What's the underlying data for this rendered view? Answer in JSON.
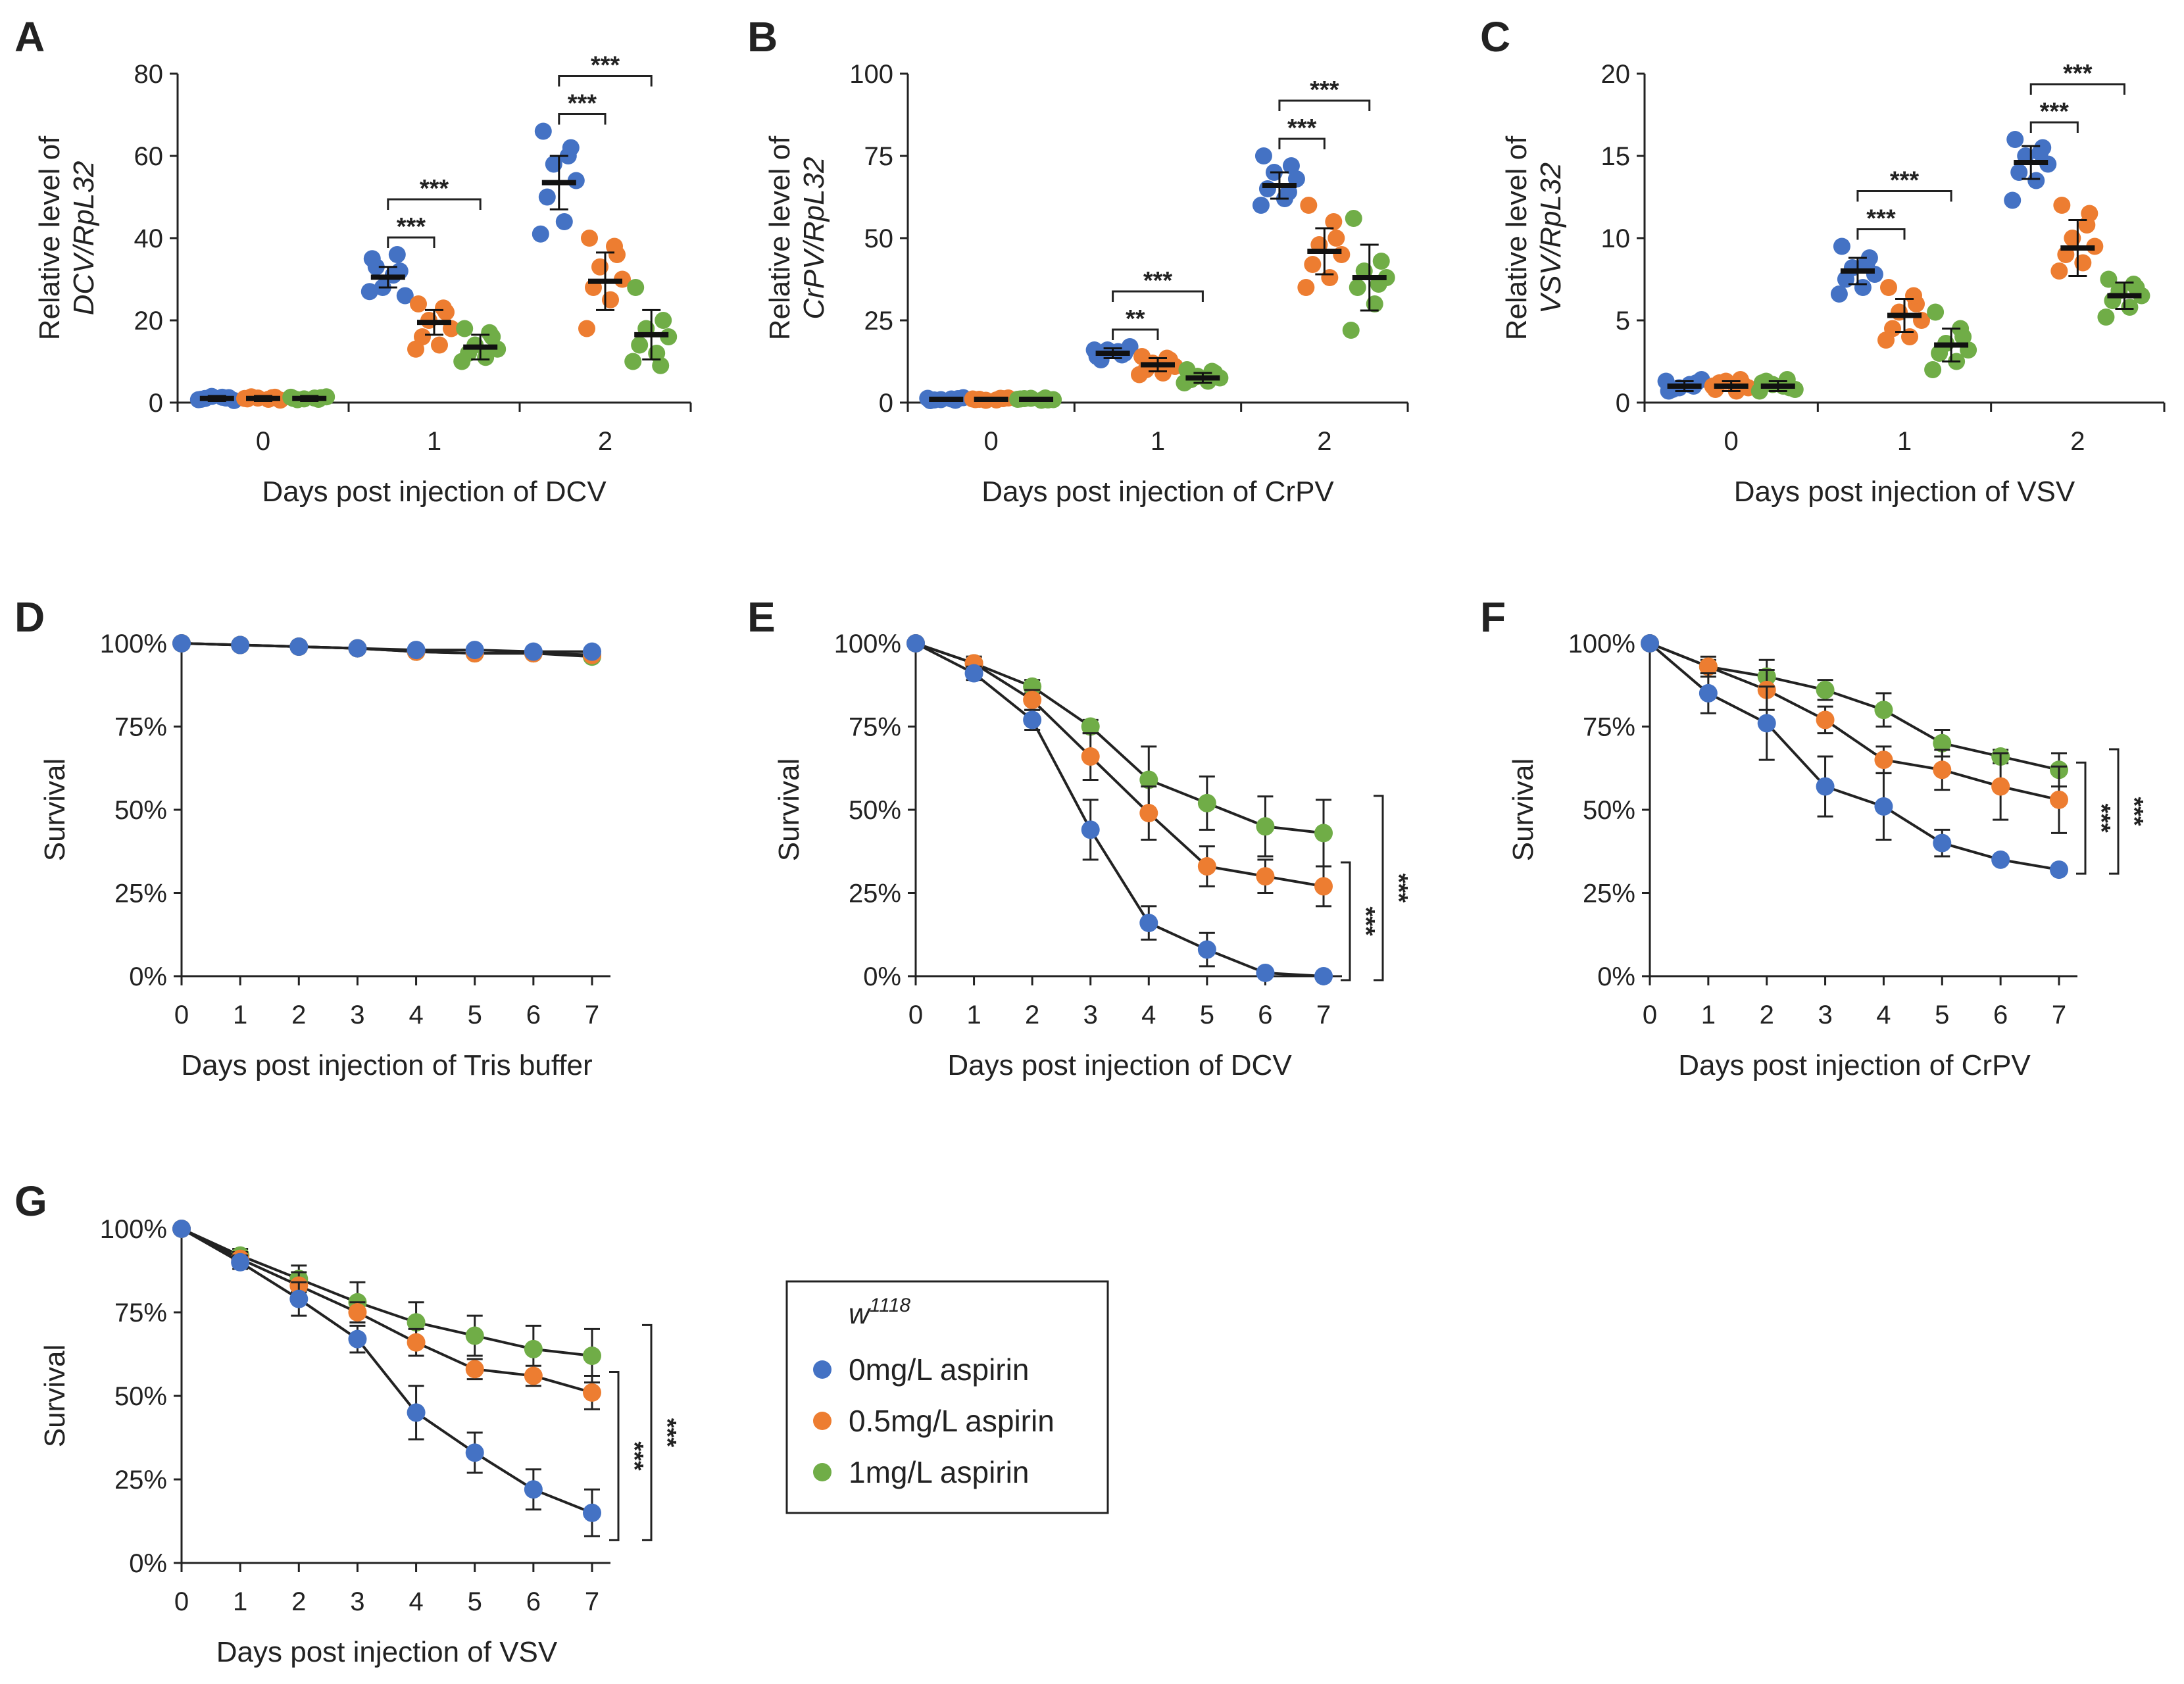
{
  "series_colors": {
    "0mg/L aspirin": "#4472C4",
    "0.5mg/L aspirin": "#ED7D31",
    "1mg/L aspirin": "#70AD47"
  },
  "legend": {
    "genotype": "w",
    "genotype_sup": "1118",
    "items": [
      "0mg/L aspirin",
      "0.5mg/L aspirin",
      "1mg/L aspirin"
    ]
  },
  "chart_data": [
    {
      "id": "A",
      "type": "scatter",
      "letter": "A",
      "ylabel_line1": "Relative level of",
      "ylabel_line2": "DCV/RpL32",
      "xlabel": "Days post injection of DCV",
      "categories": [
        "0",
        "1",
        "2"
      ],
      "ylim": [
        0,
        80
      ],
      "yticks": [
        "0",
        "20",
        "40",
        "60",
        "80"
      ],
      "series": [
        {
          "name": "0mg/L aspirin",
          "means": [
            1,
            30.5,
            53.5
          ],
          "err": [
            0.6,
            2.5,
            6.5
          ],
          "points": [
            [
              0.8,
              1.2,
              1.5,
              0.5,
              1,
              1.3,
              0.7,
              1.1
            ],
            [
              35,
              32,
              28,
              26,
              33,
              31,
              27,
              36
            ],
            [
              66,
              62,
              58,
              54,
              50,
              44,
              41,
              60
            ]
          ]
        },
        {
          "name": "0.5mg/L aspirin",
          "means": [
            1,
            19.5,
            29.5
          ],
          "err": [
            0.6,
            3,
            7
          ],
          "points": [
            [
              0.9,
              1.3,
              1.1,
              0.6,
              1.4,
              0.8,
              1,
              1.2
            ],
            [
              24,
              22,
              20,
              18,
              16,
              14,
              13,
              23
            ],
            [
              40,
              36,
              33,
              30,
              28,
              25,
              18,
              38
            ]
          ]
        },
        {
          "name": "1mg/L aspirin",
          "means": [
            1,
            13.5,
            16.5
          ],
          "err": [
            0.6,
            3,
            6
          ],
          "points": [
            [
              1,
              1.2,
              0.9,
              1.4,
              0.7,
              1.1,
              1.3,
              0.8
            ],
            [
              18,
              16,
              14,
              13,
              12,
              11,
              10,
              17
            ],
            [
              28,
              20,
              18,
              16,
              14,
              12,
              10,
              9
            ]
          ]
        }
      ],
      "sig": [
        {
          "day": 1,
          "to": "0.5mg/L aspirin",
          "label": "***"
        },
        {
          "day": 1,
          "to": "1mg/L aspirin",
          "label": "***"
        },
        {
          "day": 2,
          "to": "0.5mg/L aspirin",
          "label": "***"
        },
        {
          "day": 2,
          "to": "1mg/L aspirin",
          "label": "***"
        }
      ]
    },
    {
      "id": "B",
      "type": "scatter",
      "letter": "B",
      "ylabel_line1": "Relative level of",
      "ylabel_line2": "CrPV/RpL32",
      "xlabel": "Days post injection of CrPV",
      "categories": [
        "0",
        "1",
        "2"
      ],
      "ylim": [
        0,
        100
      ],
      "yticks": [
        "0",
        "25",
        "50",
        "75",
        "100"
      ],
      "series": [
        {
          "name": "0mg/L aspirin",
          "means": [
            1,
            15,
            66
          ],
          "err": [
            0.5,
            1.5,
            4
          ],
          "points": [
            [
              0.6,
              1.2,
              0.9,
              1.5,
              0.8,
              1.1,
              1.3,
              0.7
            ],
            [
              14,
              15,
              16,
              17,
              13,
              15.5,
              16,
              14.5
            ],
            [
              75,
              72,
              70,
              68,
              65,
              62,
              60,
              64
            ]
          ]
        },
        {
          "name": "0.5mg/L aspirin",
          "means": [
            1,
            11.5,
            46
          ],
          "err": [
            0.5,
            2,
            7
          ],
          "points": [
            [
              0.9,
              1.2,
              0.7,
              1.4,
              1,
              0.8,
              1.1,
              1.3
            ],
            [
              14,
              13,
              12,
              11,
              10,
              9,
              8.5,
              13.5
            ],
            [
              60,
              50,
              48,
              45,
              42,
              38,
              35,
              55
            ]
          ]
        },
        {
          "name": "1mg/L aspirin",
          "means": [
            1,
            7.5,
            38
          ],
          "err": [
            0.5,
            1.5,
            10
          ],
          "points": [
            [
              1.1,
              0.8,
              1.3,
              0.9,
              1.2,
              0.7,
              1,
              1.4
            ],
            [
              10,
              9,
              8,
              7.5,
              7,
              6.5,
              6,
              9.5
            ],
            [
              56,
              43,
              40,
              38,
              35,
              30,
              22,
              36
            ]
          ]
        }
      ],
      "sig": [
        {
          "day": 1,
          "to": "0.5mg/L aspirin",
          "label": "**"
        },
        {
          "day": 1,
          "to": "1mg/L aspirin",
          "label": "***"
        },
        {
          "day": 2,
          "to": "0.5mg/L aspirin",
          "label": "***"
        },
        {
          "day": 2,
          "to": "1mg/L aspirin",
          "label": "***"
        }
      ]
    },
    {
      "id": "C",
      "type": "scatter",
      "letter": "C",
      "ylabel_line1": "Relative level of",
      "ylabel_line2": "VSV/RpL32",
      "xlabel": "Days post injection of VSV",
      "categories": [
        "0",
        "1",
        "2"
      ],
      "ylim": [
        0,
        20
      ],
      "yticks": [
        "0",
        "5",
        "10",
        "15",
        "20"
      ],
      "series": [
        {
          "name": "0mg/L aspirin",
          "means": [
            1,
            8,
            14.6
          ],
          "err": [
            0.3,
            0.8,
            1
          ],
          "points": [
            [
              0.7,
              1.2,
              0.9,
              1.4,
              0.8,
              1.1,
              1.3,
              1
            ],
            [
              9.5,
              8.8,
              8.2,
              7.8,
              7.5,
              7,
              6.6,
              8.5
            ],
            [
              16,
              15.5,
              15,
              14.5,
              14,
              13.5,
              12.3,
              15.2
            ]
          ]
        },
        {
          "name": "0.5mg/L aspirin",
          "means": [
            1,
            5.3,
            9.4
          ],
          "err": [
            0.3,
            1,
            1.7
          ],
          "points": [
            [
              0.8,
              1.1,
              1.3,
              0.9,
              1.2,
              0.7,
              1,
              1.4
            ],
            [
              7,
              6,
              5.5,
              5,
              4.5,
              4,
              3.8,
              6.5
            ],
            [
              12,
              11.5,
              10,
              9.5,
              9,
              8.5,
              8,
              10.8
            ]
          ]
        },
        {
          "name": "1mg/L aspirin",
          "means": [
            1,
            3.5,
            6.5
          ],
          "err": [
            0.3,
            1,
            0.8
          ],
          "points": [
            [
              1.2,
              0.9,
              1.1,
              0.8,
              1.3,
              1,
              0.7,
              1.4
            ],
            [
              5.5,
              4,
              3.6,
              3.2,
              3,
              2.5,
              2,
              4.5
            ],
            [
              7.5,
              7,
              6.8,
              6.5,
              6.2,
              5.8,
              5.2,
              7.2
            ]
          ]
        }
      ],
      "sig": [
        {
          "day": 1,
          "to": "0.5mg/L aspirin",
          "label": "***"
        },
        {
          "day": 1,
          "to": "1mg/L aspirin",
          "label": "***"
        },
        {
          "day": 2,
          "to": "0.5mg/L aspirin",
          "label": "***"
        },
        {
          "day": 2,
          "to": "1mg/L aspirin",
          "label": "***"
        }
      ]
    },
    {
      "id": "D",
      "type": "line",
      "letter": "D",
      "ylabel": "Survival",
      "xlabel": "Days post injection of Tris buffer",
      "x": [
        0,
        1,
        2,
        3,
        4,
        5,
        6,
        7
      ],
      "ylim": [
        0,
        100
      ],
      "yticks": [
        "0%",
        "25%",
        "50%",
        "75%",
        "100%"
      ],
      "series": [
        {
          "name": "0mg/L aspirin",
          "values": [
            100,
            99.5,
            99,
            98.5,
            98,
            98,
            97.5,
            97.5
          ],
          "err": [
            0,
            0,
            0,
            0,
            0,
            0,
            0,
            0
          ]
        },
        {
          "name": "0.5mg/L aspirin",
          "values": [
            100,
            99.5,
            99,
            98.5,
            97.5,
            97,
            97,
            96.5
          ],
          "err": [
            0,
            0,
            0,
            0,
            0,
            0,
            0,
            0
          ]
        },
        {
          "name": "1mg/L aspirin",
          "values": [
            100,
            99.5,
            99,
            98.5,
            97.5,
            97,
            97,
            96
          ],
          "err": [
            0,
            0,
            0,
            0,
            0,
            0,
            0,
            0
          ]
        }
      ],
      "sig": []
    },
    {
      "id": "E",
      "type": "line",
      "letter": "E",
      "ylabel": "Survival",
      "xlabel": "Days post injection of DCV",
      "x": [
        0,
        1,
        2,
        3,
        4,
        5,
        6,
        7
      ],
      "ylim": [
        0,
        100
      ],
      "yticks": [
        "0%",
        "25%",
        "50%",
        "75%",
        "100%"
      ],
      "series": [
        {
          "name": "0mg/L aspirin",
          "values": [
            100,
            91,
            77,
            44,
            16,
            8,
            1,
            0
          ],
          "err": [
            0,
            2,
            3,
            9,
            5,
            5,
            1,
            0
          ]
        },
        {
          "name": "0.5mg/L aspirin",
          "values": [
            100,
            94,
            83,
            66,
            49,
            33,
            30,
            27
          ],
          "err": [
            0,
            2,
            3,
            7,
            8,
            6,
            5,
            6
          ]
        },
        {
          "name": "1mg/L aspirin",
          "values": [
            100,
            94,
            87,
            75,
            59,
            52,
            45,
            43
          ],
          "err": [
            0,
            2,
            2,
            2,
            10,
            8,
            9,
            10
          ]
        }
      ],
      "sig": [
        {
          "label": "***",
          "from": "0mg/L aspirin",
          "to": "0.5mg/L aspirin"
        },
        {
          "label": "***",
          "from": "0mg/L aspirin",
          "to": "1mg/L aspirin"
        }
      ]
    },
    {
      "id": "F",
      "type": "line",
      "letter": "F",
      "ylabel": "Survival",
      "xlabel": "Days post injection of CrPV",
      "x": [
        0,
        1,
        2,
        3,
        4,
        5,
        6,
        7
      ],
      "ylim": [
        0,
        100
      ],
      "yticks": [
        "0%",
        "25%",
        "50%",
        "75%",
        "100%"
      ],
      "series": [
        {
          "name": "0mg/L aspirin",
          "values": [
            100,
            85,
            76,
            57,
            51,
            40,
            35,
            32
          ],
          "err": [
            0,
            6,
            11,
            9,
            10,
            4,
            0,
            0
          ]
        },
        {
          "name": "0.5mg/L aspirin",
          "values": [
            100,
            93,
            86,
            77,
            65,
            62,
            57,
            53
          ],
          "err": [
            0,
            3,
            6,
            4,
            4,
            6,
            10,
            10
          ]
        },
        {
          "name": "1mg/L aspirin",
          "values": [
            100,
            93,
            90,
            86,
            80,
            70,
            66,
            62
          ],
          "err": [
            0,
            2,
            5,
            3,
            5,
            4,
            2,
            5
          ]
        }
      ],
      "sig": [
        {
          "label": "***",
          "from": "0mg/L aspirin",
          "to": "0.5mg/L aspirin"
        },
        {
          "label": "***",
          "from": "0mg/L aspirin",
          "to": "1mg/L aspirin"
        }
      ]
    },
    {
      "id": "G",
      "type": "line",
      "letter": "G",
      "ylabel": "Survival",
      "xlabel": "Days post injection of VSV",
      "x": [
        0,
        1,
        2,
        3,
        4,
        5,
        6,
        7
      ],
      "ylim": [
        0,
        100
      ],
      "yticks": [
        "0%",
        "25%",
        "50%",
        "75%",
        "100%"
      ],
      "series": [
        {
          "name": "0mg/L aspirin",
          "values": [
            100,
            90,
            79,
            67,
            45,
            33,
            22,
            15
          ],
          "err": [
            0,
            2,
            5,
            4,
            8,
            6,
            6,
            7
          ]
        },
        {
          "name": "0.5mg/L aspirin",
          "values": [
            100,
            91,
            83,
            75,
            66,
            58,
            56,
            51
          ],
          "err": [
            0,
            2,
            4,
            3,
            4,
            3,
            3,
            5
          ]
        },
        {
          "name": "1mg/L aspirin",
          "values": [
            100,
            92,
            85,
            78,
            72,
            68,
            64,
            62
          ],
          "err": [
            0,
            2,
            4,
            6,
            6,
            6,
            7,
            8
          ]
        }
      ],
      "sig": [
        {
          "label": "***",
          "from": "0mg/L aspirin",
          "to": "0.5mg/L aspirin"
        },
        {
          "label": "***",
          "from": "0mg/L aspirin",
          "to": "1mg/L aspirin"
        }
      ]
    }
  ]
}
